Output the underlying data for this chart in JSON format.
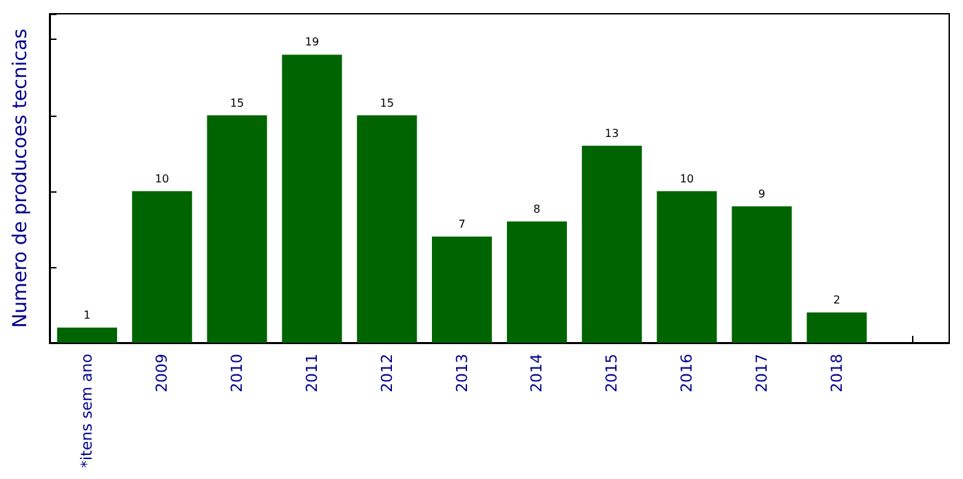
{
  "chart_data": {
    "type": "bar",
    "ylabel": "Numero de producoes tecnicas",
    "categories": [
      "*itens sem ano",
      "2009",
      "2010",
      "2011",
      "2012",
      "2013",
      "2014",
      "2015",
      "2016",
      "2017",
      "2018",
      null
    ],
    "values": [
      1,
      10,
      15,
      19,
      15,
      7,
      8,
      13,
      10,
      9,
      2,
      null
    ],
    "color": "#006400",
    "ylim": [
      0,
      21.7
    ],
    "tick_labels": "x",
    "data_labels": true,
    "grid": false
  }
}
